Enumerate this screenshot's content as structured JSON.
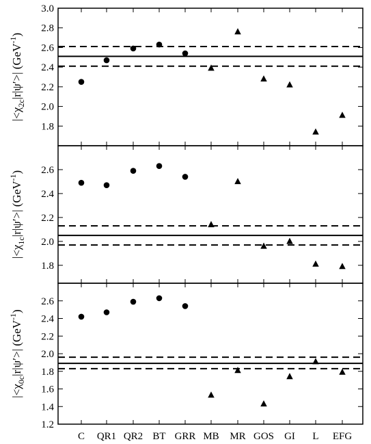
{
  "chart_data": [
    {
      "type": "scatter",
      "ylabel_parts": {
        "open": "|<χ",
        "sub": "2c",
        "close": "|r|ψ′>|  (GeV",
        "sup": "-1",
        "end": ")"
      },
      "ylim": [
        1.6,
        3.0
      ],
      "yticks": [
        1.8,
        2.0,
        2.2,
        2.4,
        2.6,
        2.8,
        3.0
      ],
      "ytick_labels": [
        "1.8",
        "2.0",
        "2.2",
        "2.4",
        "2.6",
        "2.8",
        "3.0"
      ],
      "reference_lines": [
        {
          "style": "solid",
          "value": 2.51
        },
        {
          "style": "dashed",
          "value": 2.61
        },
        {
          "style": "dashed",
          "value": 2.41
        }
      ],
      "series": [
        {
          "marker": "circle",
          "points": [
            {
              "x": "C",
              "y": 2.25
            },
            {
              "x": "QR1",
              "y": 2.47
            },
            {
              "x": "QR2",
              "y": 2.59
            },
            {
              "x": "BT",
              "y": 2.63
            },
            {
              "x": "GRR",
              "y": 2.54
            }
          ]
        },
        {
          "marker": "triangle",
          "points": [
            {
              "x": "MB",
              "y": 2.39
            },
            {
              "x": "MR",
              "y": 2.76
            },
            {
              "x": "GOS",
              "y": 2.28
            },
            {
              "x": "GI",
              "y": 2.22
            },
            {
              "x": "L",
              "y": 1.74
            },
            {
              "x": "EFG",
              "y": 1.91
            }
          ]
        }
      ]
    },
    {
      "type": "scatter",
      "ylabel_parts": {
        "open": "|<χ",
        "sub": "1c",
        "close": "|r|ψ′>|  (GeV",
        "sup": "-1",
        "end": ")"
      },
      "ylim": [
        1.65,
        2.8
      ],
      "yticks": [
        1.8,
        2.0,
        2.2,
        2.4,
        2.6
      ],
      "ytick_labels": [
        "1.8",
        "2.0",
        "2.2",
        "2.4",
        "2.6"
      ],
      "reference_lines": [
        {
          "style": "solid",
          "value": 2.05
        },
        {
          "style": "dashed",
          "value": 2.13
        },
        {
          "style": "dashed",
          "value": 1.97
        }
      ],
      "series": [
        {
          "marker": "circle",
          "points": [
            {
              "x": "C",
              "y": 2.49
            },
            {
              "x": "QR1",
              "y": 2.47
            },
            {
              "x": "QR2",
              "y": 2.59
            },
            {
              "x": "BT",
              "y": 2.63
            },
            {
              "x": "GRR",
              "y": 2.54
            }
          ]
        },
        {
          "marker": "triangle",
          "points": [
            {
              "x": "MB",
              "y": 2.14
            },
            {
              "x": "MR",
              "y": 2.5
            },
            {
              "x": "GOS",
              "y": 1.96
            },
            {
              "x": "GI",
              "y": 2.0
            },
            {
              "x": "L",
              "y": 1.81
            },
            {
              "x": "EFG",
              "y": 1.79
            }
          ]
        }
      ]
    },
    {
      "type": "scatter",
      "ylabel_parts": {
        "open": "|<χ",
        "sub": "0c",
        "close": "|r|ψ′>|  (GeV",
        "sup": "-1",
        "end": ")"
      },
      "ylim": [
        1.2,
        2.8
      ],
      "yticks": [
        1.2,
        1.4,
        1.6,
        1.8,
        2.0,
        2.2,
        2.4,
        2.6
      ],
      "ytick_labels": [
        "1.2",
        "1.4",
        "1.6",
        "1.8",
        "2.0",
        "2.2",
        "2.4",
        "2.6"
      ],
      "reference_lines": [
        {
          "style": "solid",
          "value": 1.89
        },
        {
          "style": "dashed",
          "value": 1.96
        },
        {
          "style": "dashed",
          "value": 1.83
        }
      ],
      "series": [
        {
          "marker": "circle",
          "points": [
            {
              "x": "C",
              "y": 2.42
            },
            {
              "x": "QR1",
              "y": 2.47
            },
            {
              "x": "QR2",
              "y": 2.59
            },
            {
              "x": "BT",
              "y": 2.63
            },
            {
              "x": "GRR",
              "y": 2.54
            }
          ]
        },
        {
          "marker": "triangle",
          "points": [
            {
              "x": "MB",
              "y": 1.53
            },
            {
              "x": "MR",
              "y": 1.81
            },
            {
              "x": "GOS",
              "y": 1.43
            },
            {
              "x": "GI",
              "y": 1.74
            },
            {
              "x": "L",
              "y": 1.91
            },
            {
              "x": "EFG",
              "y": 1.79
            }
          ]
        }
      ]
    }
  ],
  "categories": [
    "C",
    "QR1",
    "QR2",
    "BT",
    "GRR",
    "MB",
    "MR",
    "GOS",
    "GI",
    "L",
    "EFG"
  ],
  "colors": {
    "ink": "#000000",
    "background": "#ffffff"
  }
}
